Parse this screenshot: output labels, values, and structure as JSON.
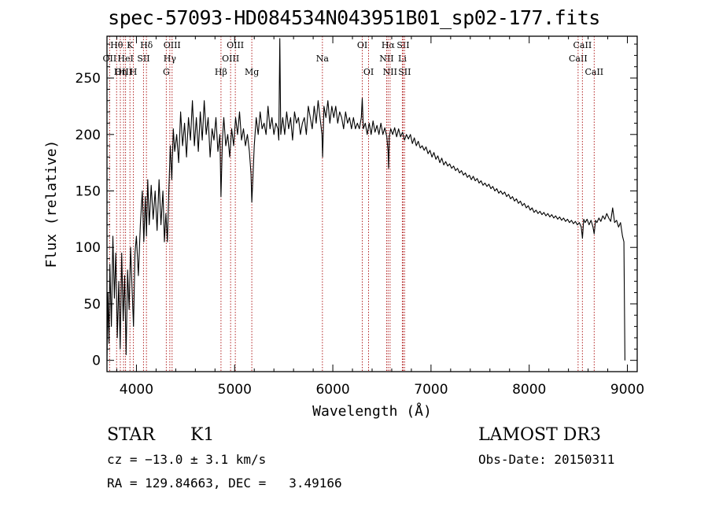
{
  "chart_data": {
    "type": "line",
    "title": "spec-57093-HD084534N043951B01_sp02-177.fits",
    "xlabel": "Wavelength (Å)",
    "ylabel": "Flux (relative)",
    "xlim": [
      3700,
      9100
    ],
    "ylim": [
      -10,
      287
    ],
    "xticks": [
      4000,
      5000,
      6000,
      7000,
      8000,
      9000
    ],
    "yticks": [
      0,
      50,
      100,
      150,
      200,
      250
    ],
    "line_color": "#000000",
    "marker_color": "#b22222",
    "spectrum": [
      [
        3700,
        0
      ],
      [
        3710,
        60
      ],
      [
        3720,
        15
      ],
      [
        3730,
        85
      ],
      [
        3745,
        30
      ],
      [
        3760,
        110
      ],
      [
        3775,
        55
      ],
      [
        3790,
        95
      ],
      [
        3805,
        20
      ],
      [
        3820,
        70
      ],
      [
        3835,
        10
      ],
      [
        3850,
        95
      ],
      [
        3865,
        35
      ],
      [
        3880,
        75
      ],
      [
        3895,
        5
      ],
      [
        3910,
        80
      ],
      [
        3925,
        45
      ],
      [
        3940,
        100
      ],
      [
        3955,
        65
      ],
      [
        3970,
        30
      ],
      [
        3985,
        95
      ],
      [
        4000,
        110
      ],
      [
        4020,
        75
      ],
      [
        4040,
        120
      ],
      [
        4060,
        150
      ],
      [
        4075,
        105
      ],
      [
        4090,
        145
      ],
      [
        4102,
        110
      ],
      [
        4115,
        160
      ],
      [
        4130,
        120
      ],
      [
        4150,
        155
      ],
      [
        4170,
        125
      ],
      [
        4190,
        150
      ],
      [
        4210,
        115
      ],
      [
        4230,
        160
      ],
      [
        4250,
        120
      ],
      [
        4270,
        150
      ],
      [
        4285,
        105
      ],
      [
        4300,
        130
      ],
      [
        4315,
        105
      ],
      [
        4330,
        150
      ],
      [
        4345,
        190
      ],
      [
        4360,
        160
      ],
      [
        4375,
        205
      ],
      [
        4390,
        185
      ],
      [
        4410,
        200
      ],
      [
        4430,
        175
      ],
      [
        4450,
        220
      ],
      [
        4470,
        190
      ],
      [
        4490,
        210
      ],
      [
        4510,
        180
      ],
      [
        4530,
        215
      ],
      [
        4550,
        195
      ],
      [
        4570,
        230
      ],
      [
        4590,
        190
      ],
      [
        4610,
        215
      ],
      [
        4630,
        185
      ],
      [
        4650,
        220
      ],
      [
        4670,
        195
      ],
      [
        4690,
        230
      ],
      [
        4710,
        200
      ],
      [
        4730,
        215
      ],
      [
        4750,
        180
      ],
      [
        4770,
        205
      ],
      [
        4790,
        195
      ],
      [
        4810,
        215
      ],
      [
        4830,
        185
      ],
      [
        4850,
        200
      ],
      [
        4861,
        145
      ],
      [
        4875,
        195
      ],
      [
        4890,
        215
      ],
      [
        4910,
        190
      ],
      [
        4930,
        200
      ],
      [
        4950,
        180
      ],
      [
        4970,
        205
      ],
      [
        4990,
        190
      ],
      [
        5010,
        215
      ],
      [
        5030,
        200
      ],
      [
        5050,
        220
      ],
      [
        5070,
        195
      ],
      [
        5090,
        205
      ],
      [
        5110,
        190
      ],
      [
        5130,
        200
      ],
      [
        5150,
        185
      ],
      [
        5167,
        165
      ],
      [
        5175,
        140
      ],
      [
        5185,
        160
      ],
      [
        5200,
        190
      ],
      [
        5220,
        215
      ],
      [
        5240,
        200
      ],
      [
        5260,
        220
      ],
      [
        5280,
        205
      ],
      [
        5300,
        210
      ],
      [
        5320,
        200
      ],
      [
        5340,
        225
      ],
      [
        5360,
        205
      ],
      [
        5380,
        215
      ],
      [
        5400,
        200
      ],
      [
        5420,
        210
      ],
      [
        5440,
        205
      ],
      [
        5450,
        195
      ],
      [
        5460,
        285
      ],
      [
        5470,
        200
      ],
      [
        5490,
        215
      ],
      [
        5510,
        200
      ],
      [
        5530,
        220
      ],
      [
        5550,
        205
      ],
      [
        5570,
        215
      ],
      [
        5590,
        195
      ],
      [
        5610,
        220
      ],
      [
        5630,
        210
      ],
      [
        5650,
        215
      ],
      [
        5670,
        200
      ],
      [
        5690,
        210
      ],
      [
        5710,
        215
      ],
      [
        5730,
        200
      ],
      [
        5750,
        225
      ],
      [
        5770,
        215
      ],
      [
        5790,
        205
      ],
      [
        5810,
        225
      ],
      [
        5830,
        210
      ],
      [
        5850,
        230
      ],
      [
        5870,
        215
      ],
      [
        5890,
        200
      ],
      [
        5896,
        180
      ],
      [
        5910,
        225
      ],
      [
        5930,
        215
      ],
      [
        5950,
        230
      ],
      [
        5970,
        210
      ],
      [
        5990,
        225
      ],
      [
        6010,
        215
      ],
      [
        6030,
        225
      ],
      [
        6050,
        210
      ],
      [
        6070,
        220
      ],
      [
        6090,
        215
      ],
      [
        6110,
        205
      ],
      [
        6130,
        220
      ],
      [
        6150,
        210
      ],
      [
        6170,
        215
      ],
      [
        6190,
        205
      ],
      [
        6210,
        215
      ],
      [
        6230,
        205
      ],
      [
        6250,
        210
      ],
      [
        6270,
        205
      ],
      [
        6290,
        215
      ],
      [
        6300,
        232
      ],
      [
        6310,
        205
      ],
      [
        6330,
        210
      ],
      [
        6350,
        200
      ],
      [
        6370,
        210
      ],
      [
        6390,
        200
      ],
      [
        6410,
        212
      ],
      [
        6430,
        202
      ],
      [
        6450,
        208
      ],
      [
        6470,
        200
      ],
      [
        6490,
        210
      ],
      [
        6510,
        200
      ],
      [
        6530,
        206
      ],
      [
        6550,
        198
      ],
      [
        6563,
        185
      ],
      [
        6568,
        170
      ],
      [
        6575,
        198
      ],
      [
        6590,
        205
      ],
      [
        6610,
        200
      ],
      [
        6630,
        206
      ],
      [
        6650,
        198
      ],
      [
        6670,
        205
      ],
      [
        6690,
        198
      ],
      [
        6710,
        202
      ],
      [
        6730,
        195
      ],
      [
        6750,
        200
      ],
      [
        6770,
        196
      ],
      [
        6790,
        200
      ],
      [
        6810,
        192
      ],
      [
        6830,
        197
      ],
      [
        6850,
        190
      ],
      [
        6870,
        194
      ],
      [
        6890,
        188
      ],
      [
        6910,
        190
      ],
      [
        6930,
        186
      ],
      [
        6950,
        189
      ],
      [
        6970,
        183
      ],
      [
        6990,
        186
      ],
      [
        7010,
        180
      ],
      [
        7030,
        184
      ],
      [
        7050,
        178
      ],
      [
        7070,
        181
      ],
      [
        7090,
        175
      ],
      [
        7110,
        179
      ],
      [
        7130,
        173
      ],
      [
        7150,
        176
      ],
      [
        7170,
        172
      ],
      [
        7190,
        174
      ],
      [
        7210,
        170
      ],
      [
        7230,
        172
      ],
      [
        7250,
        168
      ],
      [
        7270,
        170
      ],
      [
        7290,
        166
      ],
      [
        7310,
        168
      ],
      [
        7330,
        164
      ],
      [
        7350,
        166
      ],
      [
        7370,
        162
      ],
      [
        7390,
        164
      ],
      [
        7410,
        160
      ],
      [
        7430,
        163
      ],
      [
        7450,
        159
      ],
      [
        7470,
        161
      ],
      [
        7490,
        157
      ],
      [
        7510,
        159
      ],
      [
        7530,
        155
      ],
      [
        7550,
        157
      ],
      [
        7570,
        154
      ],
      [
        7590,
        156
      ],
      [
        7610,
        152
      ],
      [
        7630,
        154
      ],
      [
        7650,
        150
      ],
      [
        7670,
        152
      ],
      [
        7690,
        148
      ],
      [
        7710,
        150
      ],
      [
        7730,
        147
      ],
      [
        7750,
        149
      ],
      [
        7770,
        145
      ],
      [
        7790,
        147
      ],
      [
        7810,
        143
      ],
      [
        7830,
        145
      ],
      [
        7850,
        141
      ],
      [
        7870,
        143
      ],
      [
        7890,
        139
      ],
      [
        7910,
        141
      ],
      [
        7930,
        137
      ],
      [
        7950,
        139
      ],
      [
        7970,
        135
      ],
      [
        7990,
        137
      ],
      [
        8010,
        133
      ],
      [
        8030,
        135
      ],
      [
        8050,
        131
      ],
      [
        8070,
        133
      ],
      [
        8090,
        130
      ],
      [
        8110,
        132
      ],
      [
        8130,
        129
      ],
      [
        8150,
        131
      ],
      [
        8170,
        128
      ],
      [
        8190,
        130
      ],
      [
        8210,
        127
      ],
      [
        8230,
        129
      ],
      [
        8250,
        126
      ],
      [
        8270,
        128
      ],
      [
        8290,
        125
      ],
      [
        8310,
        127
      ],
      [
        8330,
        124
      ],
      [
        8350,
        126
      ],
      [
        8370,
        123
      ],
      [
        8390,
        125
      ],
      [
        8410,
        122
      ],
      [
        8430,
        124
      ],
      [
        8450,
        121
      ],
      [
        8470,
        123
      ],
      [
        8490,
        120
      ],
      [
        8510,
        122
      ],
      [
        8530,
        118
      ],
      [
        8542,
        108
      ],
      [
        8555,
        125
      ],
      [
        8570,
        122
      ],
      [
        8590,
        125
      ],
      [
        8610,
        120
      ],
      [
        8630,
        124
      ],
      [
        8650,
        118
      ],
      [
        8662,
        112
      ],
      [
        8675,
        124
      ],
      [
        8690,
        122
      ],
      [
        8710,
        126
      ],
      [
        8730,
        123
      ],
      [
        8750,
        128
      ],
      [
        8770,
        125
      ],
      [
        8790,
        130
      ],
      [
        8810,
        126
      ],
      [
        8830,
        123
      ],
      [
        8850,
        135
      ],
      [
        8870,
        122
      ],
      [
        8890,
        124
      ],
      [
        8910,
        118
      ],
      [
        8930,
        122
      ],
      [
        8950,
        110
      ],
      [
        8965,
        105
      ],
      [
        8975,
        0
      ]
    ],
    "line_markers": [
      {
        "name": "OII",
        "x": 3727,
        "row": 2
      },
      {
        "name": "Hθ",
        "x": 3798,
        "row": 1
      },
      {
        "name": "OIII",
        "x": 3869,
        "row": 3
      },
      {
        "name": "Hη",
        "x": 3836,
        "row": 3
      },
      {
        "name": "HeI",
        "x": 3889,
        "row": 2
      },
      {
        "name": "K",
        "x": 3934,
        "row": 1
      },
      {
        "name": "H",
        "x": 3969,
        "row": 3
      },
      {
        "name": "SII",
        "x": 4072,
        "row": 2
      },
      {
        "name": "Hδ",
        "x": 4102,
        "row": 1
      },
      {
        "name": "G",
        "x": 4304,
        "row": 3
      },
      {
        "name": "Hγ",
        "x": 4340,
        "row": 2
      },
      {
        "name": "OIII",
        "x": 4363,
        "row": 1
      },
      {
        "name": "Hβ",
        "x": 4861,
        "row": 3
      },
      {
        "name": "OIII",
        "x": 4959,
        "row": 2
      },
      {
        "name": "OIII",
        "x": 5007,
        "row": 1
      },
      {
        "name": "Mg",
        "x": 5175,
        "row": 3
      },
      {
        "name": "Na",
        "x": 5894,
        "row": 2
      },
      {
        "name": "OI",
        "x": 6300,
        "row": 1
      },
      {
        "name": "OI",
        "x": 6364,
        "row": 3
      },
      {
        "name": "NII",
        "x": 6548,
        "row": 2
      },
      {
        "name": "Hα",
        "x": 6563,
        "row": 1
      },
      {
        "name": "NII",
        "x": 6583,
        "row": 3
      },
      {
        "name": "Li",
        "x": 6708,
        "row": 2
      },
      {
        "name": "SII",
        "x": 6716,
        "row": 1
      },
      {
        "name": "SII",
        "x": 6731,
        "row": 3
      },
      {
        "name": "CaII",
        "x": 8498,
        "row": 2
      },
      {
        "name": "CaII",
        "x": 8542,
        "row": 1
      },
      {
        "name": "CaII",
        "x": 8662,
        "row": 3
      }
    ]
  },
  "info": {
    "class": "STAR",
    "subclass": "K1",
    "survey": "LAMOST DR3",
    "cz": "cz = −13.0 ± 3.1 km/s",
    "obs_date": "Obs-Date: 20150311",
    "coords": "RA = 129.84663, DEC =   3.49166"
  }
}
